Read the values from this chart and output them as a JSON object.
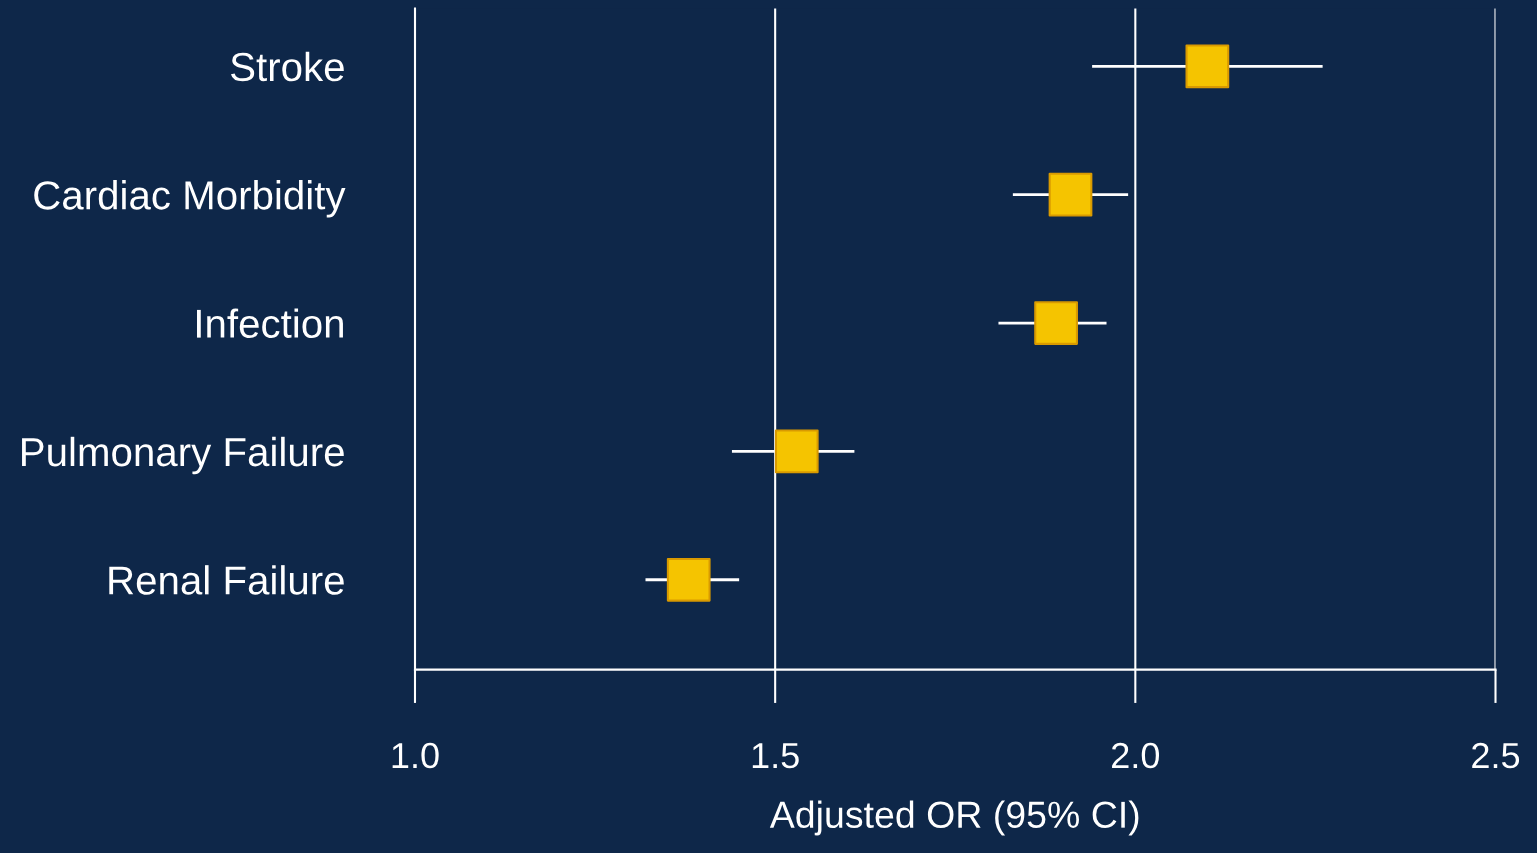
{
  "chart_data": {
    "type": "scatter",
    "orientation": "horizontal",
    "xlabel": "Adjusted OR (95% CI)",
    "categories": [
      "Stroke",
      "Cardiac Morbidity",
      "Infection",
      "Pulmonary Failure",
      "Renal Failure"
    ],
    "series": [
      {
        "color": "#f5c400",
        "values": [
          2.1,
          1.91,
          1.89,
          1.53,
          1.38
        ],
        "errors": [
          [
            1.94,
            2.26
          ],
          [
            1.83,
            1.99
          ],
          [
            1.81,
            1.96
          ],
          [
            1.44,
            1.61
          ],
          [
            1.32,
            1.45
          ]
        ]
      }
    ],
    "xlim": [
      1.0,
      2.5
    ],
    "xticks": [
      {
        "value": 1.0,
        "label": "1.0"
      },
      {
        "value": 1.5,
        "label": "1.5"
      },
      {
        "value": 2.0,
        "label": "2.0"
      },
      {
        "value": 2.5,
        "label": "2.5"
      }
    ],
    "grid": "x",
    "marker": "square"
  }
}
